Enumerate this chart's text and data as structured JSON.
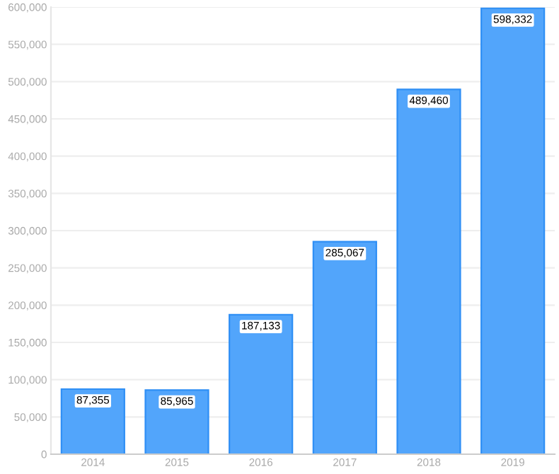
{
  "chart_data": {
    "type": "bar",
    "categories": [
      "2014",
      "2015",
      "2016",
      "2017",
      "2018",
      "2019"
    ],
    "values": [
      87355,
      85965,
      187133,
      285067,
      489460,
      598332
    ],
    "value_labels": [
      "87,355",
      "85,965",
      "187,133",
      "285,067",
      "489,460",
      "598,332"
    ],
    "color": "#52a5fb",
    "ylim": [
      0,
      600000
    ],
    "yticks": [
      {
        "value": 0,
        "label": "0"
      },
      {
        "value": 50000,
        "label": "50,000"
      },
      {
        "value": 100000,
        "label": "100,000"
      },
      {
        "value": 150000,
        "label": "150,000"
      },
      {
        "value": 200000,
        "label": "200,000"
      },
      {
        "value": 250000,
        "label": "250,000"
      },
      {
        "value": 300000,
        "label": "300,000"
      },
      {
        "value": 350000,
        "label": "350,000"
      },
      {
        "value": 400000,
        "label": "400,000"
      },
      {
        "value": 450000,
        "label": "450,000"
      },
      {
        "value": 500000,
        "label": "500,000"
      },
      {
        "value": 550000,
        "label": "550,000"
      },
      {
        "value": 600000,
        "label": "600,000"
      }
    ],
    "grid": "y",
    "legend": false
  }
}
